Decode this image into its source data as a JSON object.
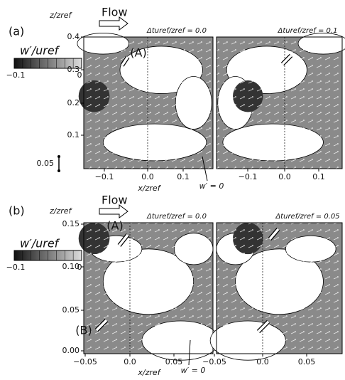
{
  "panels": [
    {
      "label": "(a)",
      "flow": "Flow",
      "y_label": "z/zref",
      "x_label": "x/zref",
      "colorbar": {
        "label": "w′/uref",
        "ticks": [
          "−0.1",
          "0"
        ]
      },
      "scale_label": "0.05",
      "contour_label": "w′ = 0",
      "region_labels": [
        "(A)"
      ],
      "yticks": [
        "0.4",
        "0.3",
        "0.2",
        "0.1"
      ],
      "subplots": [
        {
          "title": "Δturef/zref = 0.0",
          "xticks": [
            "−0.1",
            "0.0",
            "0.1"
          ]
        },
        {
          "title": "Δturef/zref = 0.1",
          "xticks": [
            "−0.1",
            "0.0",
            "0.1"
          ]
        }
      ]
    },
    {
      "label": "(b)",
      "flow": "Flow",
      "y_label": "z/zref",
      "x_label": "x/zref",
      "colorbar": {
        "label": "w′/uref",
        "ticks": [
          "−0.1",
          "0"
        ]
      },
      "contour_label": "w′ = 0",
      "region_labels": [
        "(A)",
        "(B)"
      ],
      "yticks": [
        "0.15",
        "0.10",
        "0.05",
        "0.00"
      ],
      "subplots": [
        {
          "title": "Δturef/zref = 0.0",
          "xticks": [
            "−0.05",
            "0.0",
            "0.05"
          ]
        },
        {
          "title": "Δturef/zref = 0.05",
          "xticks": [
            "−0.05",
            "0.0",
            "0.05"
          ]
        }
      ]
    }
  ]
}
